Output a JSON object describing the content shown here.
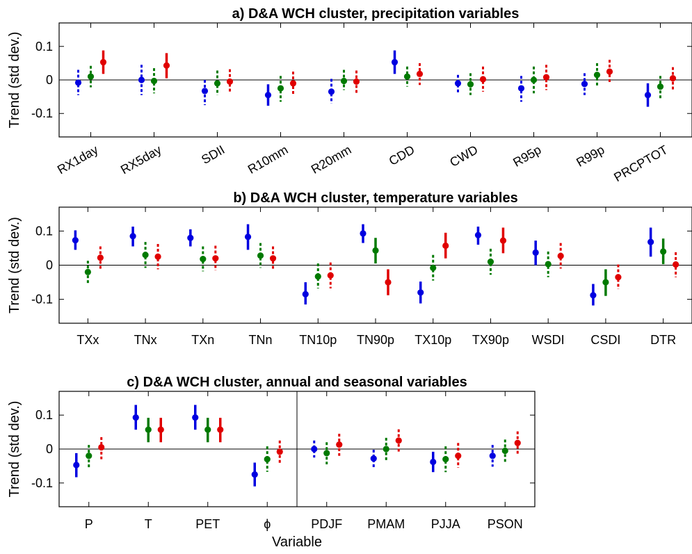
{
  "chart_data": [
    {
      "type": "scatter",
      "title": "a) D&A WCH cluster, precipitation variables",
      "xlabel": "",
      "ylabel": "Trend (std dev.)",
      "ylim": [
        -0.17,
        0.17
      ],
      "yticks": [
        "0.1",
        "0",
        "-0.1"
      ],
      "grid": false,
      "rotated_xticks": true,
      "colors": [
        "#0000e0",
        "#007a00",
        "#e00000"
      ],
      "categories": [
        "RX1day",
        "RX5day",
        "SDII",
        "R10mm",
        "R20mm",
        "CDD",
        "CWD",
        "R95p",
        "R99p",
        "PRCPTOT"
      ],
      "series": [
        {
          "values": [
            -0.008,
            0.0,
            -0.033,
            -0.045,
            -0.035,
            0.053,
            -0.01,
            -0.025,
            -0.012,
            -0.045
          ],
          "lower": [
            -0.045,
            -0.045,
            -0.075,
            -0.077,
            -0.07,
            0.018,
            -0.04,
            -0.065,
            -0.045,
            -0.08
          ],
          "upper": [
            0.03,
            0.045,
            0.0,
            -0.013,
            0.003,
            0.088,
            0.015,
            0.012,
            0.02,
            -0.01
          ],
          "dashed": [
            true,
            true,
            true,
            false,
            true,
            false,
            true,
            true,
            true,
            false
          ]
        },
        {
          "values": [
            0.01,
            -0.003,
            -0.01,
            -0.025,
            -0.003,
            0.01,
            -0.013,
            0.0,
            0.015,
            -0.02
          ],
          "lower": [
            -0.022,
            -0.04,
            -0.045,
            -0.065,
            -0.03,
            -0.02,
            -0.045,
            -0.04,
            -0.02,
            -0.055
          ],
          "upper": [
            0.042,
            0.035,
            0.028,
            0.012,
            0.03,
            0.04,
            0.02,
            0.04,
            0.05,
            0.012
          ],
          "dashed": [
            true,
            true,
            true,
            true,
            true,
            true,
            true,
            true,
            true,
            true
          ]
        },
        {
          "values": [
            0.053,
            0.043,
            -0.005,
            -0.01,
            -0.005,
            0.018,
            0.002,
            0.008,
            0.025,
            0.005
          ],
          "lower": [
            0.018,
            0.005,
            -0.04,
            -0.045,
            -0.04,
            -0.015,
            -0.035,
            -0.03,
            -0.01,
            -0.03
          ],
          "upper": [
            0.088,
            0.08,
            0.032,
            0.025,
            0.028,
            0.05,
            0.04,
            0.045,
            0.06,
            0.038
          ],
          "dashed": [
            false,
            false,
            true,
            true,
            true,
            true,
            true,
            true,
            true,
            true
          ]
        }
      ]
    },
    {
      "type": "scatter",
      "title": "b) D&A WCH cluster, temperature variables",
      "xlabel": "",
      "ylabel": "Trend (std dev.)",
      "ylim": [
        -0.17,
        0.17
      ],
      "yticks": [
        "0.1",
        "0",
        "-0.1"
      ],
      "grid": false,
      "rotated_xticks": false,
      "colors": [
        "#0000e0",
        "#007a00",
        "#e00000"
      ],
      "categories": [
        "TXx",
        "TNx",
        "TXn",
        "TNn",
        "TN10p",
        "TN90p",
        "TX10p",
        "TX90p",
        "WSDI",
        "CSDI",
        "DTR"
      ],
      "series": [
        {
          "values": [
            0.073,
            0.085,
            0.08,
            0.083,
            -0.085,
            0.093,
            -0.08,
            0.088,
            0.037,
            -0.088,
            0.068
          ],
          "lower": [
            0.045,
            0.055,
            0.055,
            0.045,
            -0.115,
            0.065,
            -0.112,
            0.06,
            0.0,
            -0.118,
            0.025
          ],
          "upper": [
            0.102,
            0.113,
            0.105,
            0.12,
            -0.05,
            0.12,
            -0.048,
            0.113,
            0.072,
            -0.055,
            0.11
          ],
          "dashed": [
            false,
            false,
            false,
            false,
            false,
            false,
            false,
            false,
            false,
            false,
            false
          ]
        },
        {
          "values": [
            -0.02,
            0.03,
            0.018,
            0.028,
            -0.033,
            0.043,
            -0.008,
            0.01,
            0.003,
            -0.05,
            0.04
          ],
          "lower": [
            -0.055,
            -0.008,
            -0.018,
            -0.008,
            -0.068,
            0.005,
            -0.045,
            -0.028,
            -0.035,
            -0.09,
            0.003
          ],
          "upper": [
            0.013,
            0.068,
            0.055,
            0.065,
            0.005,
            0.08,
            0.03,
            0.048,
            0.04,
            -0.012,
            0.078
          ],
          "dashed": [
            true,
            true,
            true,
            true,
            true,
            false,
            true,
            true,
            true,
            false,
            false
          ]
        },
        {
          "values": [
            0.022,
            0.025,
            0.02,
            0.02,
            -0.03,
            -0.05,
            0.057,
            0.072,
            0.027,
            -0.035,
            0.002
          ],
          "lower": [
            -0.012,
            -0.012,
            -0.015,
            -0.015,
            -0.068,
            -0.088,
            0.02,
            0.035,
            -0.01,
            -0.07,
            -0.035
          ],
          "upper": [
            0.055,
            0.062,
            0.057,
            0.055,
            0.008,
            -0.012,
            0.095,
            0.11,
            0.065,
            0.002,
            0.038
          ],
          "dashed": [
            true,
            true,
            true,
            true,
            true,
            false,
            false,
            false,
            true,
            true,
            true
          ]
        }
      ]
    },
    {
      "type": "scatter",
      "title": "c) D&A WCH cluster, annual and seasonal variables",
      "xlabel": "Variable",
      "ylabel": "Trend (std dev.)",
      "ylim": [
        -0.17,
        0.17
      ],
      "yticks": [
        "0.1",
        "0",
        "-0.1"
      ],
      "grid": false,
      "rotated_xticks": false,
      "divider_after_index": 3,
      "colors": [
        "#0000e0",
        "#007a00",
        "#e00000"
      ],
      "categories": [
        "P",
        "T",
        "PET",
        "ϕ",
        "PDJF",
        "PMAM",
        "PJJA",
        "PSON"
      ],
      "series": [
        {
          "values": [
            -0.047,
            0.093,
            0.093,
            -0.075,
            0.0,
            -0.028,
            -0.038,
            -0.02
          ],
          "lower": [
            -0.083,
            0.057,
            0.057,
            -0.11,
            -0.025,
            -0.055,
            -0.068,
            -0.052
          ],
          "upper": [
            -0.012,
            0.13,
            0.13,
            -0.04,
            0.025,
            -0.002,
            -0.008,
            0.012
          ],
          "dashed": [
            false,
            false,
            false,
            false,
            true,
            true,
            false,
            true
          ]
        },
        {
          "values": [
            -0.02,
            0.057,
            0.057,
            -0.03,
            -0.012,
            0.0,
            -0.03,
            -0.005
          ],
          "lower": [
            -0.055,
            0.02,
            0.02,
            -0.067,
            -0.045,
            -0.035,
            -0.068,
            -0.04
          ],
          "upper": [
            0.012,
            0.092,
            0.092,
            0.008,
            0.02,
            0.033,
            0.008,
            0.028
          ],
          "dashed": [
            true,
            false,
            false,
            true,
            true,
            true,
            true,
            true
          ]
        },
        {
          "values": [
            0.005,
            0.057,
            0.057,
            -0.008,
            0.013,
            0.025,
            -0.02,
            0.018
          ],
          "lower": [
            -0.03,
            0.02,
            0.02,
            -0.045,
            -0.02,
            -0.008,
            -0.055,
            -0.015
          ],
          "upper": [
            0.035,
            0.092,
            0.092,
            0.025,
            0.045,
            0.058,
            0.018,
            0.052
          ],
          "dashed": [
            true,
            false,
            false,
            true,
            true,
            true,
            true,
            true
          ]
        }
      ]
    }
  ]
}
